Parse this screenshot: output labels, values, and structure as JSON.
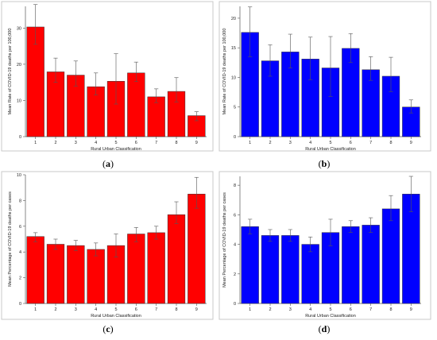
{
  "chart_data": [
    {
      "type": "bar",
      "panel_label": "a",
      "color": "#ff0000",
      "categories": [
        "1",
        "2",
        "3",
        "4",
        "5",
        "6",
        "7",
        "8",
        "9"
      ],
      "values": [
        30.3,
        17.9,
        17.0,
        13.8,
        15.3,
        17.6,
        11.0,
        12.5,
        5.8
      ],
      "error_low": [
        25.5,
        15.0,
        14.0,
        11.5,
        9.0,
        15.2,
        9.4,
        9.6,
        4.4
      ],
      "error_high": [
        36.5,
        21.7,
        20.9,
        17.6,
        22.9,
        20.6,
        13.2,
        16.3,
        6.9
      ],
      "xlabel": "Rural Urban Classification",
      "ylabel": "Mean Rate of COVID-19 deaths per 100,000",
      "ylim": [
        0,
        36
      ],
      "yticks": [
        0,
        10,
        20,
        30
      ]
    },
    {
      "type": "bar",
      "panel_label": "b",
      "color": "#0000ff",
      "categories": [
        "1",
        "2",
        "3",
        "4",
        "5",
        "6",
        "7",
        "8",
        "9"
      ],
      "values": [
        17.6,
        12.8,
        14.3,
        13.1,
        11.6,
        14.9,
        11.3,
        10.2,
        5.0
      ],
      "error_low": [
        13.5,
        10.2,
        11.6,
        9.6,
        6.8,
        12.5,
        9.5,
        7.6,
        4.0
      ],
      "error_high": [
        21.9,
        15.5,
        17.3,
        16.8,
        16.9,
        17.4,
        13.5,
        13.4,
        6.2
      ],
      "xlabel": "Rural Urban Classification",
      "ylabel": "Mean Rate of COVID-19 deaths per 100,000",
      "ylim": [
        0,
        22
      ],
      "yticks": [
        0,
        5,
        10,
        15,
        20
      ]
    },
    {
      "type": "bar",
      "panel_label": "c",
      "color": "#ff0000",
      "categories": [
        "1",
        "2",
        "3",
        "4",
        "5",
        "6",
        "7",
        "8",
        "9"
      ],
      "values": [
        5.2,
        4.6,
        4.5,
        4.2,
        4.5,
        5.4,
        5.5,
        6.9,
        8.5
      ],
      "error_low": [
        4.8,
        4.2,
        4.1,
        3.7,
        3.6,
        4.8,
        5.0,
        6.2,
        7.4
      ],
      "error_high": [
        5.5,
        5.0,
        4.9,
        4.7,
        5.4,
        5.9,
        6.0,
        7.9,
        9.8
      ],
      "xlabel": "Rural Urban Classification",
      "ylabel": "Mean Percentage of COVID-19 deaths per cases",
      "ylim": [
        0,
        10
      ],
      "yticks": [
        0,
        2,
        4,
        6,
        8,
        10
      ]
    },
    {
      "type": "bar",
      "panel_label": "d",
      "color": "#0000ff",
      "categories": [
        "1",
        "2",
        "3",
        "4",
        "5",
        "6",
        "7",
        "8",
        "9"
      ],
      "values": [
        5.2,
        4.6,
        4.6,
        4.0,
        4.8,
        5.2,
        5.3,
        6.4,
        7.4
      ],
      "error_low": [
        4.7,
        4.2,
        4.2,
        3.5,
        3.9,
        4.8,
        4.8,
        5.6,
        6.2
      ],
      "error_high": [
        5.7,
        5.0,
        5.0,
        4.5,
        5.7,
        5.6,
        5.8,
        7.3,
        8.6
      ],
      "xlabel": "Rural Urban Classification",
      "ylabel": "Mean Percentage of COVID-19 deaths per cases",
      "ylim": [
        0,
        8.6
      ],
      "yticks": [
        0,
        2,
        4,
        6,
        8
      ]
    }
  ],
  "captions": [
    "(a)",
    "(b)",
    "(c)",
    "(d)"
  ]
}
